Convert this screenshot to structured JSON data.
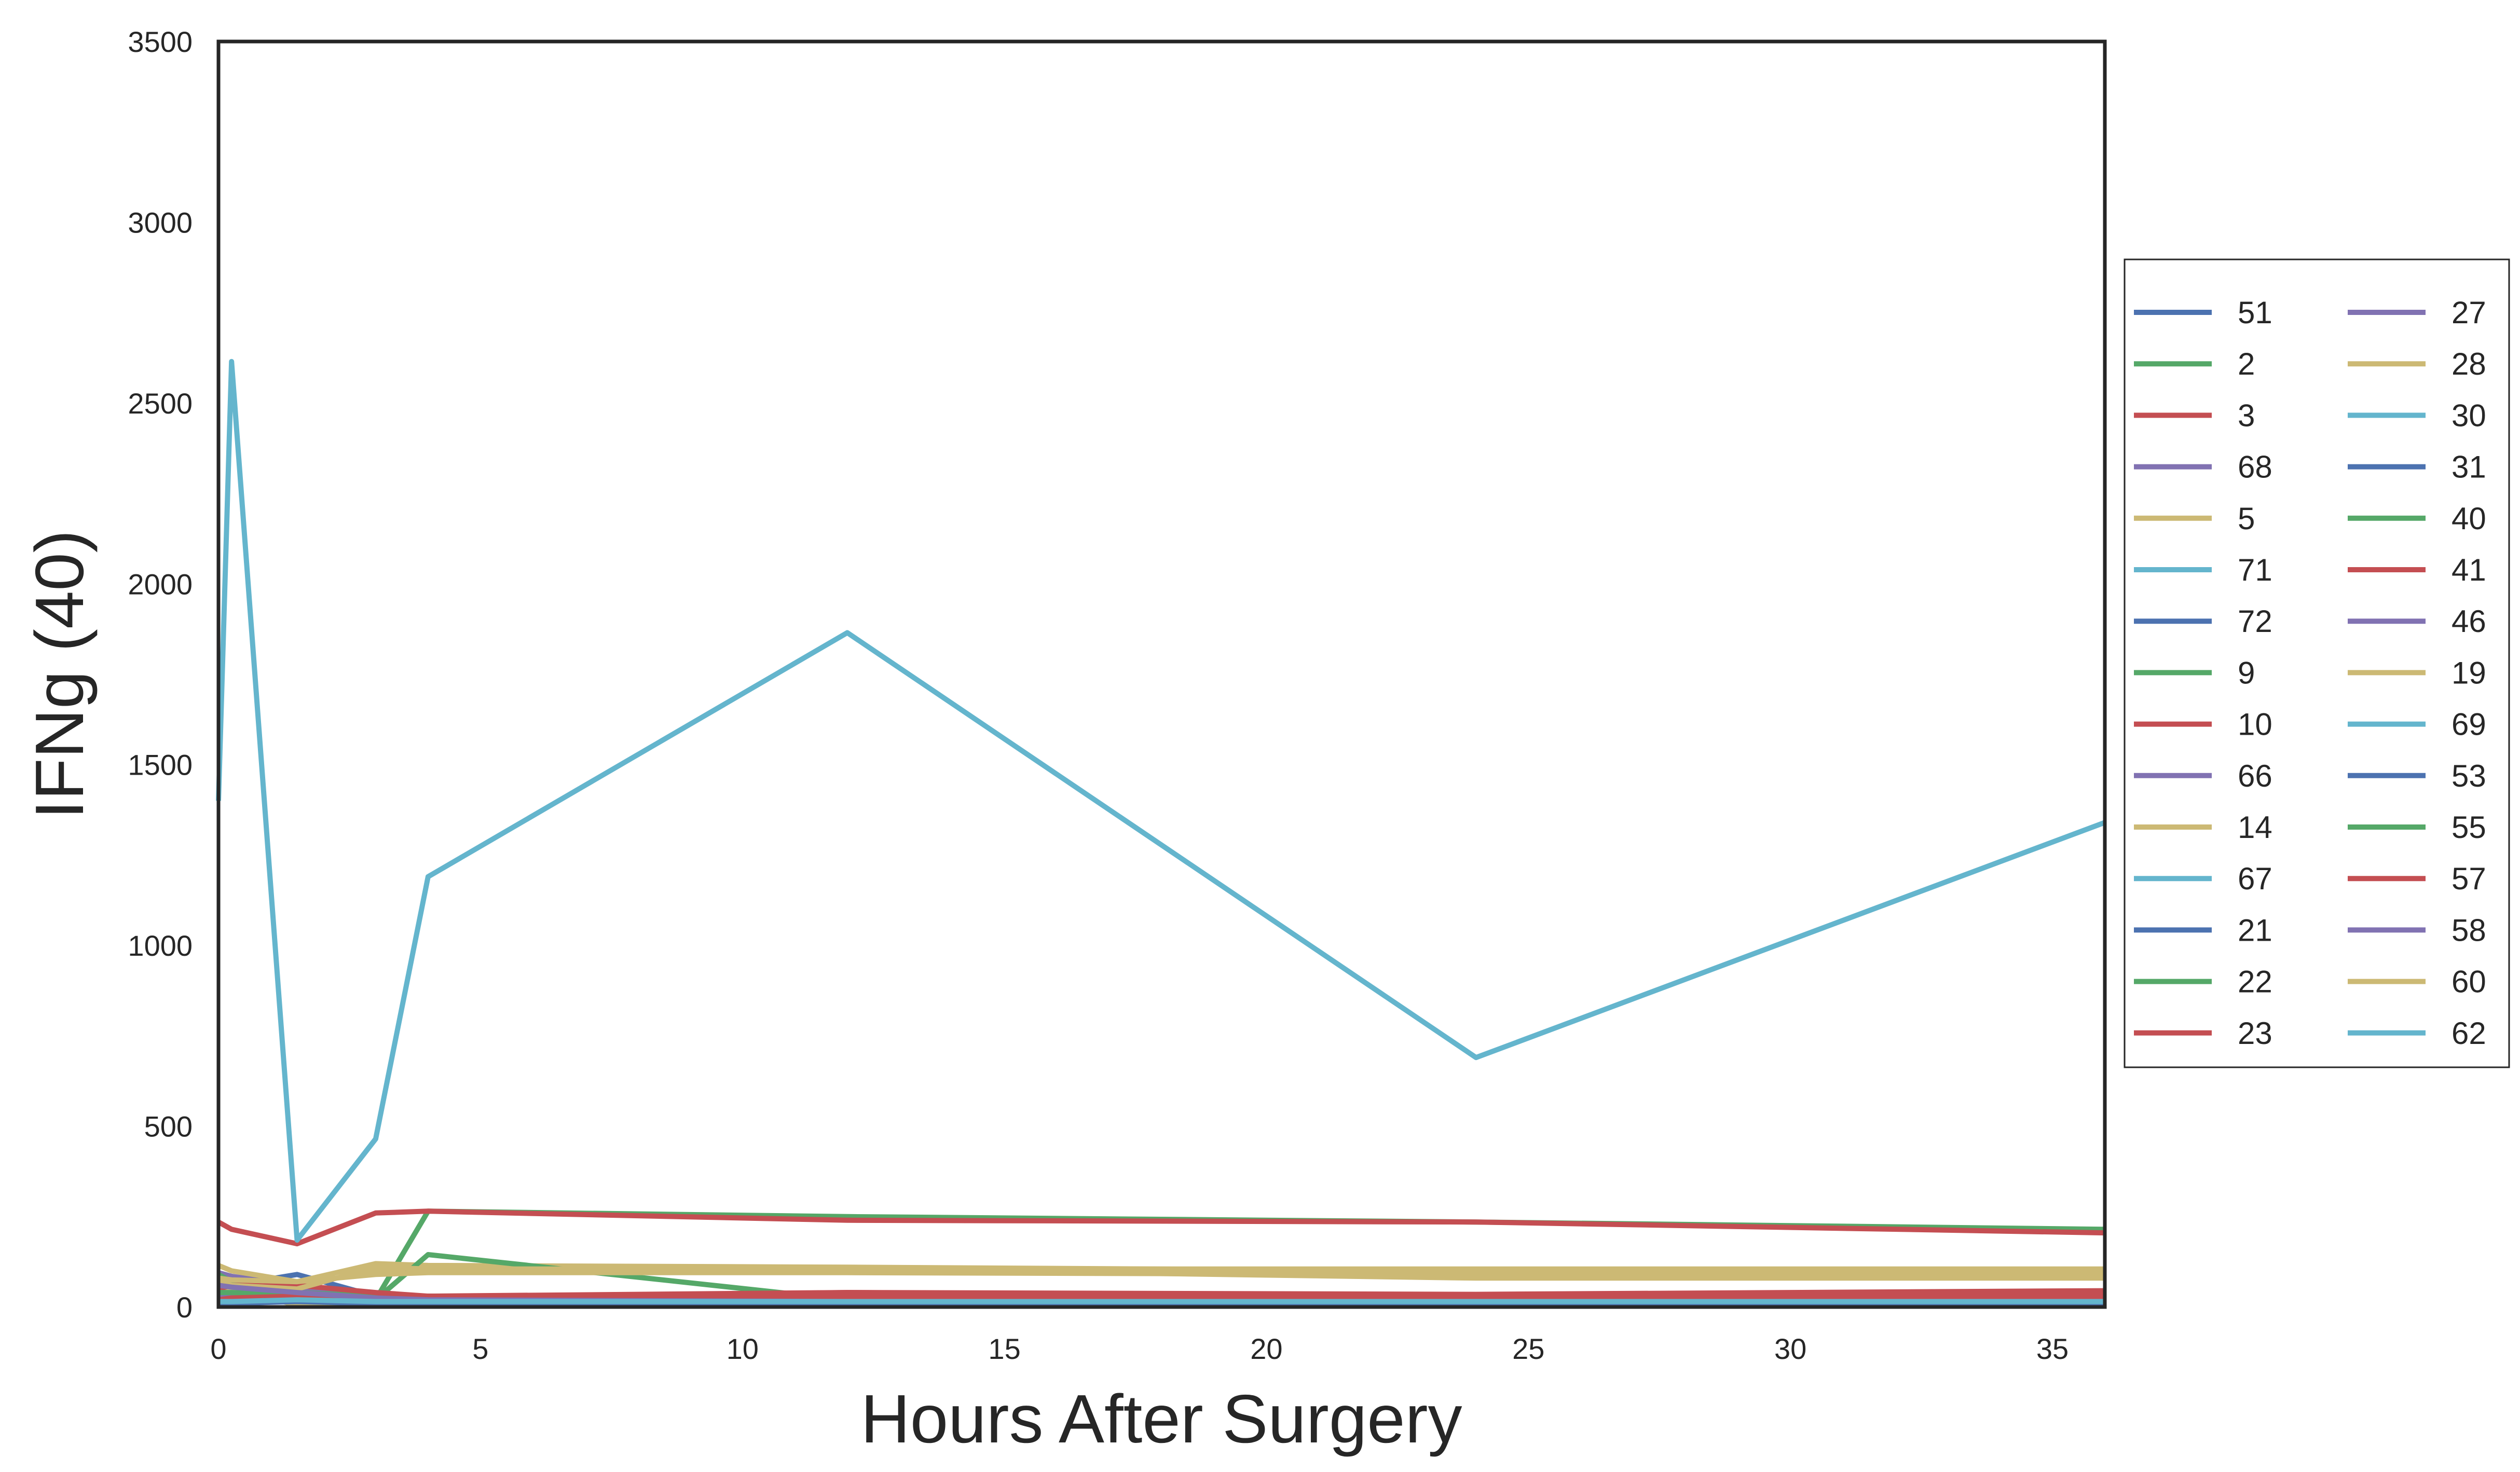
{
  "chart_data": {
    "type": "line",
    "title": "",
    "xlabel": "Hours After Surgery",
    "ylabel": "IFNg (40)",
    "xlim": [
      0,
      36
    ],
    "ylim": [
      0,
      3500
    ],
    "xticks": [
      "0",
      "5",
      "10",
      "15",
      "20",
      "25",
      "30",
      "35"
    ],
    "yticks": [
      "0",
      "500",
      "1000",
      "1500",
      "2000",
      "2500",
      "3000",
      "3500"
    ],
    "grid": false,
    "legend": {
      "placement": "right, outside",
      "columns": 2
    },
    "palette": [
      "#4c72b0",
      "#55a868",
      "#c44e52",
      "#8172b2",
      "#ccb974",
      "#64b5cd"
    ],
    "series": [
      {
        "name": "51",
        "x": [
          0,
          0.25,
          1.5,
          3,
          4,
          12,
          24,
          36
        ],
        "y": [
          40,
          60,
          90,
          30,
          20,
          20,
          20,
          20
        ]
      },
      {
        "name": "2",
        "x": [
          0,
          0.25,
          1.5,
          3,
          4,
          12,
          24,
          36
        ],
        "y": [
          20,
          25,
          30,
          20,
          265,
          250,
          235,
          215
        ]
      },
      {
        "name": "3",
        "x": [
          0,
          0.25,
          1.5,
          3,
          4,
          12,
          24,
          36
        ],
        "y": [
          235,
          215,
          175,
          260,
          265,
          240,
          235,
          205
        ]
      },
      {
        "name": "68",
        "x": [
          0,
          0.25,
          1.5,
          3,
          4,
          12,
          24,
          36
        ],
        "y": [
          95,
          85,
          60,
          30,
          20,
          20,
          20,
          20
        ]
      },
      {
        "name": "5",
        "x": [
          0,
          0.25,
          1.5,
          3,
          4,
          12,
          24,
          36
        ],
        "y": [
          115,
          100,
          70,
          120,
          115,
          110,
          100,
          100
        ]
      },
      {
        "name": "71",
        "x": [
          0,
          0.25,
          1.5,
          3,
          4,
          12,
          24,
          36
        ],
        "y": [
          1400,
          2615,
          185,
          465,
          1190,
          1865,
          690,
          1340
        ]
      },
      {
        "name": "72",
        "x": [
          0,
          0.25,
          1.5,
          3,
          4,
          12,
          24,
          36
        ],
        "y": [
          30,
          40,
          50,
          30,
          30,
          30,
          30,
          30
        ]
      },
      {
        "name": "9",
        "x": [
          0,
          0.25,
          1.5,
          3,
          4,
          12,
          24,
          36
        ],
        "y": [
          50,
          60,
          40,
          30,
          30,
          30,
          30,
          30
        ]
      },
      {
        "name": "10",
        "x": [
          0,
          0.25,
          1.5,
          3,
          4,
          12,
          24,
          36
        ],
        "y": [
          20,
          30,
          40,
          30,
          25,
          40,
          30,
          40
        ]
      },
      {
        "name": "66",
        "x": [
          0,
          0.25,
          1.5,
          3,
          4,
          12,
          24,
          36
        ],
        "y": [
          60,
          50,
          40,
          20,
          10,
          10,
          10,
          10
        ]
      },
      {
        "name": "14",
        "x": [
          0,
          0.25,
          1.5,
          3,
          4,
          12,
          24,
          36
        ],
        "y": [
          60,
          70,
          60,
          100,
          110,
          105,
          80,
          80
        ]
      },
      {
        "name": "67",
        "x": [
          0,
          0.25,
          1.5,
          3,
          4,
          12,
          24,
          36
        ],
        "y": [
          20,
          20,
          20,
          20,
          20,
          20,
          20,
          20
        ]
      },
      {
        "name": "21",
        "x": [
          0,
          0.25,
          1.5,
          3,
          4,
          12,
          24,
          36
        ],
        "y": [
          10,
          10,
          20,
          10,
          10,
          10,
          10,
          10
        ]
      },
      {
        "name": "22",
        "x": [
          0,
          0.25,
          1.5,
          3,
          4,
          12,
          24,
          36
        ],
        "y": [
          30,
          40,
          30,
          20,
          145,
          20,
          20,
          20
        ]
      },
      {
        "name": "23",
        "x": [
          0,
          0.25,
          1.5,
          3,
          4,
          12,
          24,
          36
        ],
        "y": [
          30,
          40,
          50,
          30,
          30,
          40,
          35,
          45
        ]
      },
      {
        "name": "27",
        "x": [
          0,
          0.25,
          1.5,
          3,
          4,
          12,
          24,
          36
        ],
        "y": [
          80,
          70,
          50,
          30,
          20,
          15,
          15,
          15
        ]
      },
      {
        "name": "28",
        "x": [
          0,
          0.25,
          1.5,
          3,
          4,
          12,
          24,
          36
        ],
        "y": [
          40,
          50,
          5,
          15,
          20,
          20,
          20,
          20
        ]
      },
      {
        "name": "30",
        "x": [
          0,
          0.25,
          1.5,
          3,
          4,
          12,
          24,
          36
        ],
        "y": [
          10,
          15,
          15,
          10,
          10,
          10,
          10,
          10
        ]
      },
      {
        "name": "31",
        "x": [
          0,
          0.25,
          1.5,
          3,
          4,
          12,
          24,
          36
        ],
        "y": [
          20,
          25,
          30,
          20,
          20,
          20,
          25,
          25
        ]
      },
      {
        "name": "40",
        "x": [
          0,
          0.25,
          1.5,
          3,
          4,
          12,
          24,
          36
        ],
        "y": [
          90,
          70,
          40,
          30,
          30,
          25,
          20,
          20
        ]
      },
      {
        "name": "41",
        "x": [
          0,
          0.25,
          1.5,
          3,
          4,
          12,
          24,
          36
        ],
        "y": [
          50,
          60,
          60,
          40,
          30,
          30,
          30,
          30
        ]
      },
      {
        "name": "46",
        "x": [
          0,
          0.25,
          1.5,
          3,
          4,
          12,
          24,
          36
        ],
        "y": [
          30,
          30,
          25,
          20,
          15,
          15,
          15,
          15
        ]
      },
      {
        "name": "19",
        "x": [
          0,
          0.25,
          1.5,
          3,
          4,
          12,
          24,
          36
        ],
        "y": [
          70,
          60,
          50,
          110,
          105,
          105,
          105,
          105
        ]
      },
      {
        "name": "69",
        "x": [
          0,
          0.25,
          1.5,
          3,
          4,
          12,
          24,
          36
        ],
        "y": [
          20,
          20,
          20,
          20,
          20,
          20,
          20,
          20
        ]
      },
      {
        "name": "53",
        "x": [
          0,
          0.25,
          1.5,
          3,
          4,
          12,
          24,
          36
        ],
        "y": [
          10,
          10,
          15,
          10,
          10,
          10,
          10,
          10
        ]
      },
      {
        "name": "55",
        "x": [
          0,
          0.25,
          1.5,
          3,
          4,
          12,
          24,
          36
        ],
        "y": [
          40,
          40,
          35,
          25,
          20,
          20,
          20,
          20
        ]
      },
      {
        "name": "57",
        "x": [
          0,
          0.25,
          1.5,
          3,
          4,
          12,
          24,
          36
        ],
        "y": [
          20,
          25,
          30,
          25,
          25,
          25,
          25,
          25
        ]
      },
      {
        "name": "58",
        "x": [
          0,
          0.25,
          1.5,
          3,
          4,
          12,
          24,
          36
        ],
        "y": [
          60,
          55,
          40,
          25,
          20,
          15,
          15,
          15
        ]
      },
      {
        "name": "60",
        "x": [
          0,
          0.25,
          1.5,
          3,
          4,
          12,
          24,
          36
        ],
        "y": [
          80,
          75,
          70,
          90,
          95,
          95,
          90,
          90
        ]
      },
      {
        "name": "62",
        "x": [
          0,
          0.25,
          1.5,
          3,
          4,
          12,
          24,
          36
        ],
        "y": [
          15,
          15,
          20,
          15,
          15,
          15,
          15,
          15
        ]
      }
    ]
  }
}
